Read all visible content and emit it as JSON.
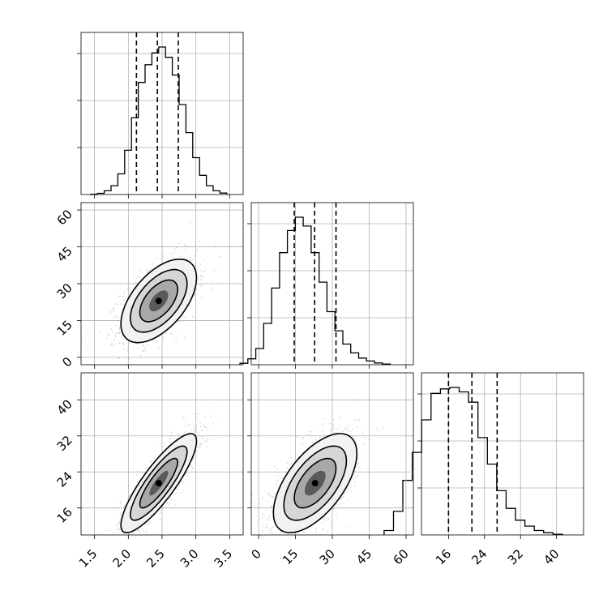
{
  "chart_data": {
    "type": "corner",
    "description_params": [
      {
        "mean": 2.45,
        "std": 0.28,
        "quantiles": [
          2.12,
          2.43,
          2.74
        ],
        "ticks": [
          "1.5",
          "2.0",
          "2.5",
          "3.0",
          "3.5"
        ],
        "tick_values": [
          1.5,
          2.0,
          2.5,
          3.0,
          3.5
        ],
        "range": [
          1.3,
          3.7
        ]
      },
      {
        "mean": 23.0,
        "std": 8.5,
        "quantiles": [
          14.5,
          22.8,
          31.5
        ],
        "ticks": [
          "0",
          "15",
          "30",
          "45",
          "60"
        ],
        "tick_values": [
          0,
          15,
          30,
          45,
          60
        ],
        "range": [
          -3,
          63
        ]
      },
      {
        "mean": 21.5,
        "std": 5.5,
        "quantiles": [
          16.0,
          21.2,
          26.8
        ],
        "ticks": [
          "16",
          "24",
          "32",
          "40"
        ],
        "tick_values": [
          16,
          24,
          32,
          40
        ],
        "range": [
          10,
          46
        ]
      }
    ],
    "correlations": {
      "0-1": 0.55,
      "0-2": 0.85,
      "1-2": 0.6
    },
    "histograms": [
      {
        "panel": "0-0",
        "values": [
          2,
          8,
          25,
          60,
          140,
          300,
          520,
          760,
          880,
          960,
          1000,
          930,
          810,
          610,
          420,
          250,
          130,
          60,
          25,
          10
        ]
      },
      {
        "panel": "1-1",
        "values": [
          10,
          40,
          110,
          280,
          520,
          760,
          910,
          1000,
          940,
          760,
          560,
          360,
          230,
          140,
          80,
          45,
          25,
          12,
          5
        ]
      },
      {
        "panel": "2-2",
        "values": [
          30,
          160,
          370,
          560,
          780,
          960,
          990,
          1000,
          970,
          900,
          660,
          480,
          300,
          180,
          100,
          60,
          30,
          15,
          5
        ]
      }
    ],
    "xlabel": "",
    "ylabel": ""
  }
}
